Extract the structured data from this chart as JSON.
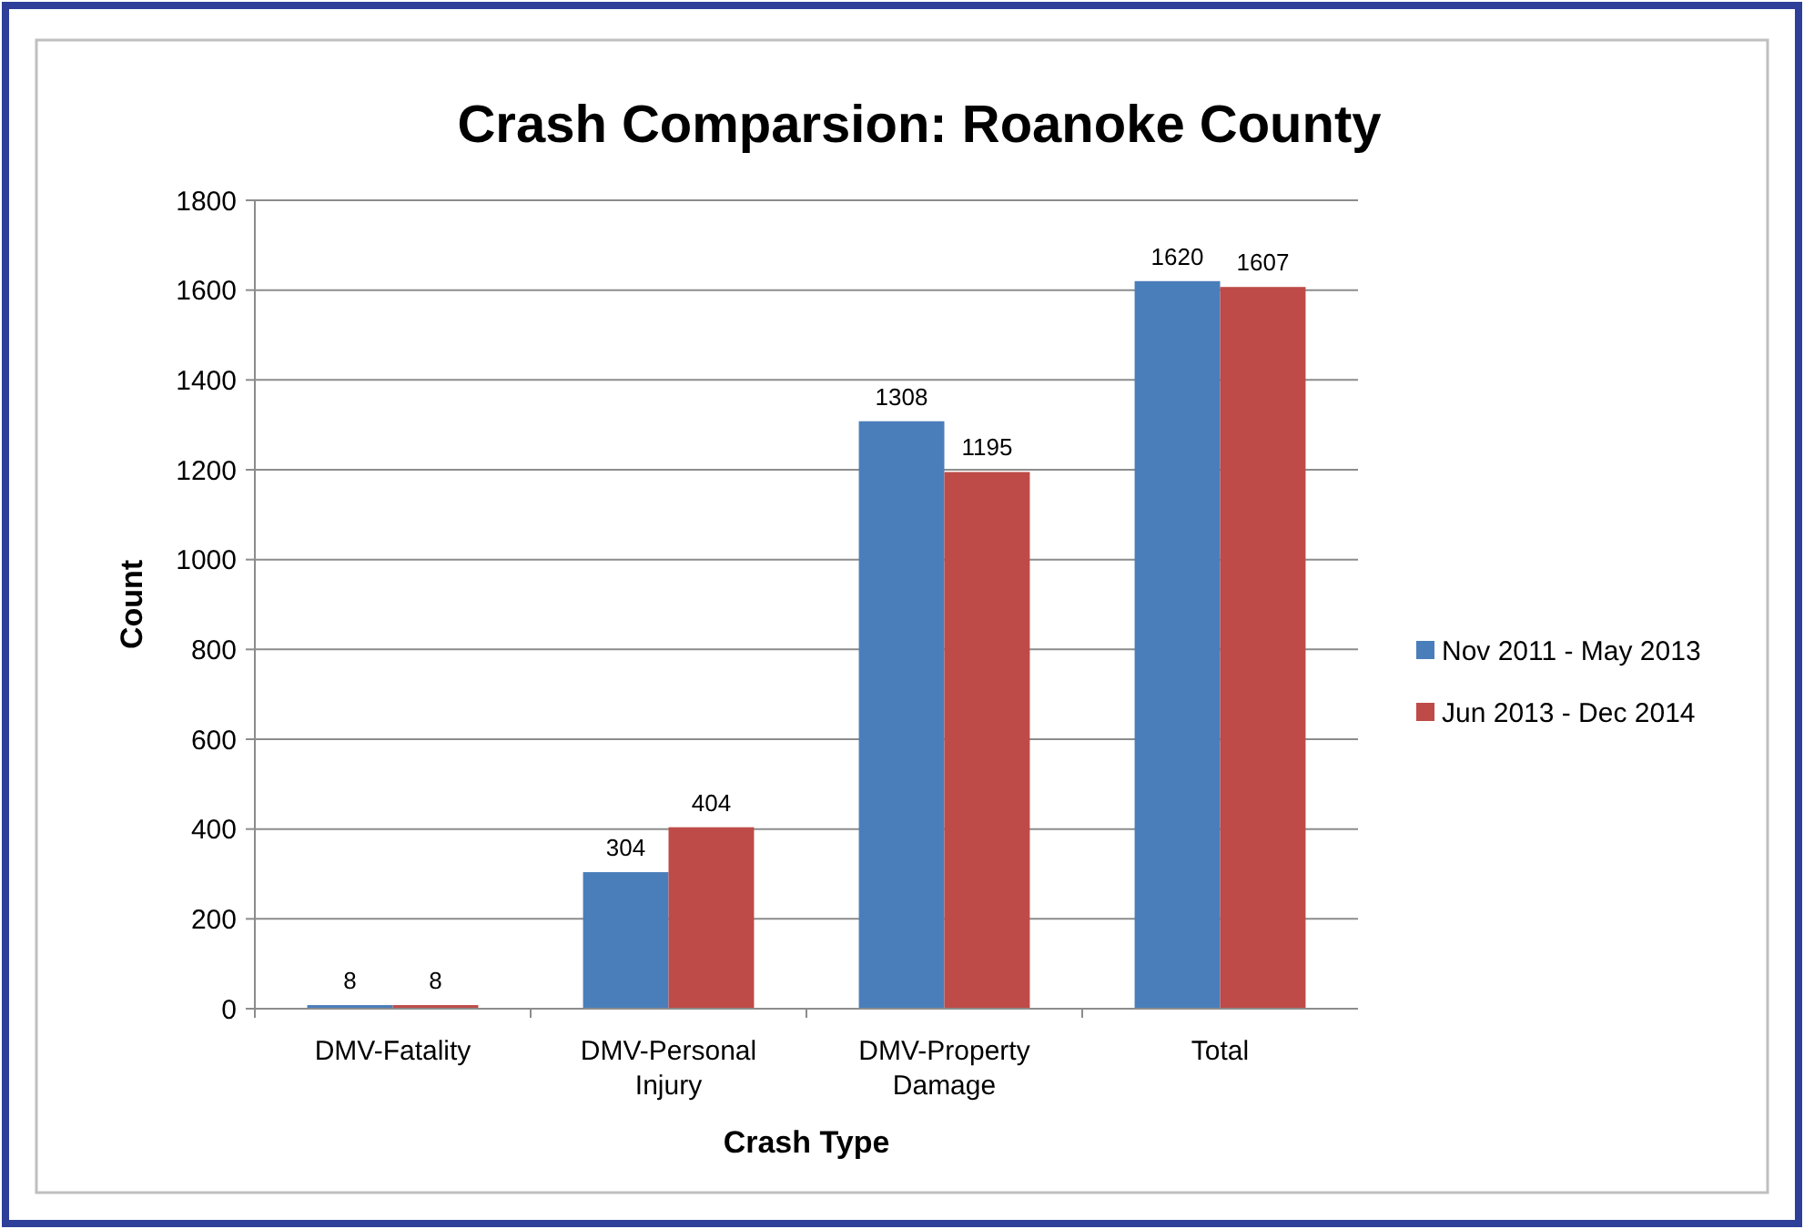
{
  "chart_data": {
    "type": "bar",
    "title": "Crash Comparsion: Roanoke County",
    "xlabel": "Crash Type",
    "ylabel": "Count",
    "categories": [
      "DMV-Fatality",
      "DMV-Personal Injury",
      "DMV-Property Damage",
      "Total"
    ],
    "series": [
      {
        "name": "Nov 2011 - May 2013",
        "color": "#4a7ebb",
        "values": [
          8,
          304,
          1308,
          1620
        ]
      },
      {
        "name": "Jun 2013 - Dec 2014",
        "color": "#be4b48",
        "values": [
          8,
          404,
          1195,
          1607
        ]
      }
    ],
    "ylim": [
      0,
      1800
    ],
    "yticks": [
      0,
      200,
      400,
      600,
      800,
      1000,
      1200,
      1400,
      1600,
      1800
    ],
    "grid": "y",
    "legend": "right",
    "data_labels": true
  }
}
